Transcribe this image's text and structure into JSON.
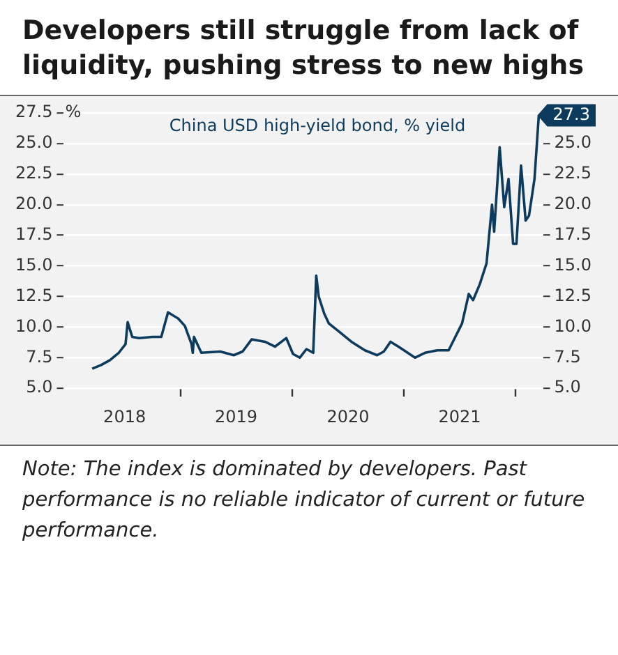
{
  "chart_data": {
    "type": "line",
    "title": "Developers still struggle from lack of liquidity, pushing stress to new highs",
    "ylabel": "%",
    "annotations": [
      "China USD high-yield bond, % yield",
      "Note: The index is dominated by developers. Past performance is no reliable indicator of current or future performance."
    ],
    "x": [
      "2018-03-18",
      "2018-04-16",
      "2018-05-15",
      "2018-06-13",
      "2018-07-05",
      "2018-07-12",
      "2018-07-27",
      "2018-08-18",
      "2018-10-01",
      "2018-10-30",
      "2018-11-21",
      "2018-12-24",
      "2019-01-15",
      "2019-02-06",
      "2019-02-10",
      "2019-02-14",
      "2019-03-10",
      "2019-05-11",
      "2019-06-24",
      "2019-07-23",
      "2019-08-22",
      "2019-10-04",
      "2019-11-06",
      "2019-12-13",
      "2020-01-04",
      "2020-01-26",
      "2020-02-17",
      "2020-03-10",
      "2020-03-20",
      "2020-03-28",
      "2020-04-15",
      "2020-04-30",
      "2020-05-30",
      "2020-07-13",
      "2020-08-26",
      "2020-10-05",
      "2020-10-27",
      "2020-11-18",
      "2020-12-14",
      "2021-02-06",
      "2021-03-11",
      "2021-04-20",
      "2021-05-27",
      "2021-06-18",
      "2021-07-10",
      "2021-08-01",
      "2021-08-15",
      "2021-09-06",
      "2021-09-28",
      "2021-10-16",
      "2021-10-23",
      "2021-11-10",
      "2021-11-25",
      "2021-12-09",
      "2021-12-24",
      "2022-01-04",
      "2022-01-19",
      "2022-02-03",
      "2022-02-14",
      "2022-03-04",
      "2022-03-18"
    ],
    "series": [
      {
        "color": "#0d3b5e",
        "values": [
          6.6,
          6.9,
          7.3,
          7.9,
          8.6,
          10.4,
          9.2,
          9.1,
          9.2,
          9.2,
          11.2,
          10.7,
          10.1,
          8.6,
          7.9,
          9.2,
          7.9,
          8.0,
          7.7,
          8.0,
          9.0,
          8.8,
          8.4,
          9.1,
          7.8,
          7.5,
          8.2,
          7.9,
          14.2,
          12.5,
          11.1,
          10.3,
          9.7,
          8.8,
          8.1,
          7.7,
          8.0,
          8.8,
          8.4,
          7.5,
          7.9,
          8.1,
          8.1,
          9.2,
          10.3,
          12.7,
          12.2,
          13.5,
          15.2,
          20.0,
          17.8,
          24.7,
          19.8,
          22.1,
          16.8,
          16.8,
          23.2,
          18.7,
          19.1,
          22.1,
          27.3
        ],
        "value_labels": [
          null,
          null,
          null,
          null,
          null,
          null,
          null,
          null,
          null,
          null,
          null,
          null,
          null,
          null,
          null,
          null,
          null,
          null,
          null,
          null,
          null,
          null,
          null,
          null,
          null,
          null,
          null,
          null,
          null,
          null,
          null,
          null,
          null,
          null,
          null,
          null,
          null,
          null,
          null,
          null,
          null,
          null,
          null,
          null,
          null,
          null,
          null,
          null,
          null,
          null,
          null,
          null,
          null,
          null,
          null,
          null,
          null,
          null,
          null,
          null,
          "27.3"
        ]
      }
    ],
    "xlim": [
      "2017-12-15",
      "2022-04-01"
    ],
    "xticks": [
      {
        "value": "2018-07-02",
        "label": "2018"
      },
      {
        "value": "2019-01-01",
        "label": null
      },
      {
        "value": "2019-07-02",
        "label": "2019"
      },
      {
        "value": "2020-01-01",
        "label": null
      },
      {
        "value": "2020-07-02",
        "label": "2020"
      },
      {
        "value": "2021-01-01",
        "label": null
      },
      {
        "value": "2021-07-02",
        "label": "2021"
      },
      {
        "value": "2022-01-01",
        "label": null
      }
    ],
    "ylim": [
      5.0,
      27.5
    ],
    "yticks": [
      {
        "value": 5,
        "label": "5.0"
      },
      {
        "value": 7.5,
        "label": "7.5"
      },
      {
        "value": 10,
        "label": "10.0"
      },
      {
        "value": 12.5,
        "label": "12.5"
      },
      {
        "value": 15,
        "label": "15.0"
      },
      {
        "value": 17.5,
        "label": "17.5"
      },
      {
        "value": 20,
        "label": "20.0"
      },
      {
        "value": 22.5,
        "label": "22.5"
      },
      {
        "value": 25,
        "label": "25.0"
      },
      {
        "value": 27.5,
        "label": "27.5"
      }
    ],
    "y2lim": [
      5.0,
      27.5
    ],
    "y2ticks": [
      {
        "value": 5,
        "label": "5.0"
      },
      {
        "value": 7.5,
        "label": "7.5"
      },
      {
        "value": 10,
        "label": "10.0"
      },
      {
        "value": 12.5,
        "label": "12.5"
      },
      {
        "value": 15,
        "label": "15.0"
      },
      {
        "value": 17.5,
        "label": "17.5"
      },
      {
        "value": 20,
        "label": "20.0"
      },
      {
        "value": 22.5,
        "label": "22.5"
      },
      {
        "value": 25,
        "label": "25.0"
      }
    ],
    "grid": "y",
    "legend": false,
    "marker": "none",
    "line_style": "solid"
  }
}
